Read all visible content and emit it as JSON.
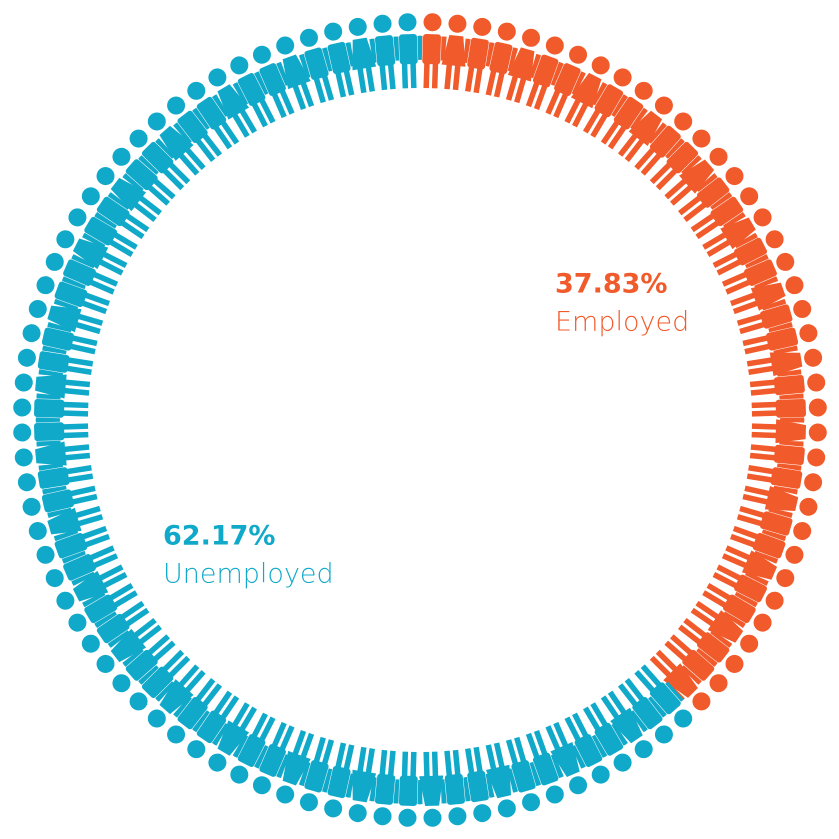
{
  "chart_data": {
    "type": "pictorial-donut",
    "categories": [
      "Employed",
      "Unemployed"
    ],
    "values": [
      37.83,
      62.17
    ],
    "value_labels": [
      "37.83%",
      "62.17%"
    ],
    "colors": [
      "#f15a2b",
      "#11a9c9"
    ]
  }
}
